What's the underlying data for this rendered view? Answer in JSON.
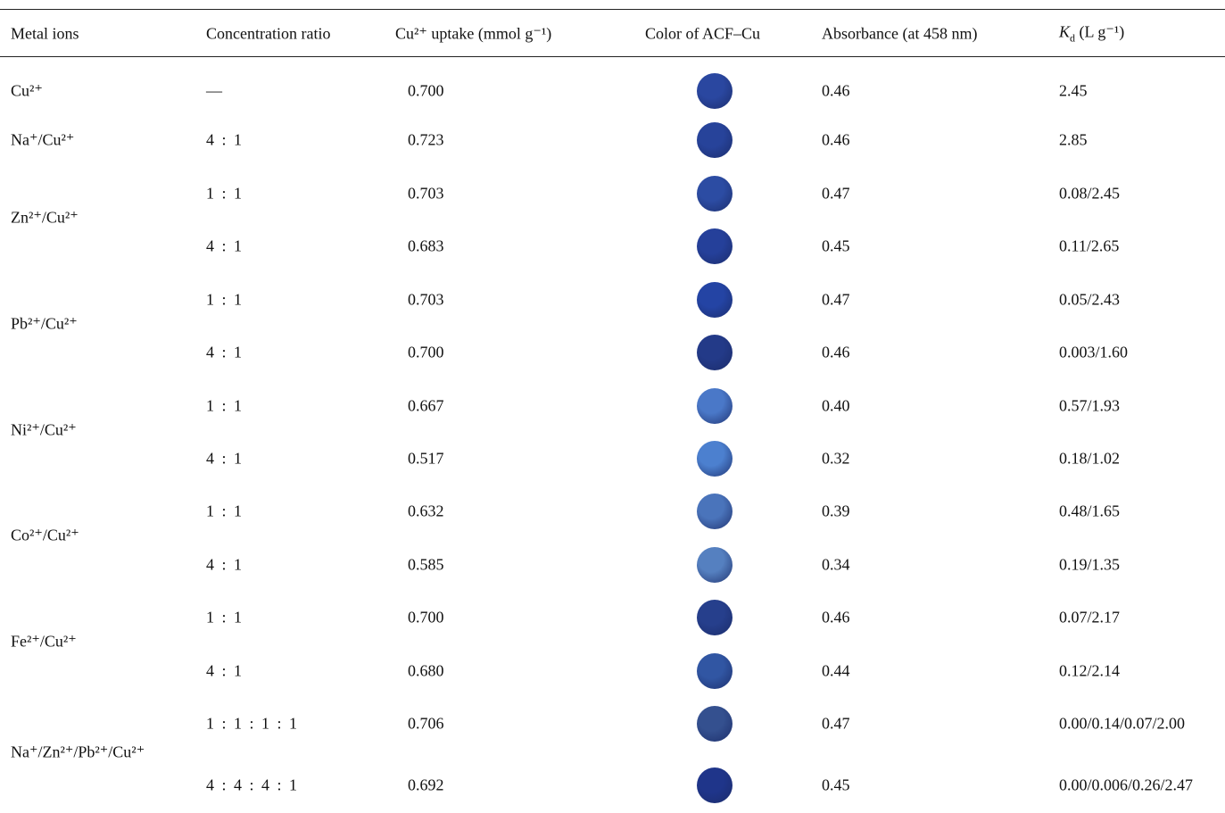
{
  "header": {
    "metal_ions": "Metal ions",
    "ratio": "Concentration ratio",
    "uptake": "Cu²⁺ uptake (mmol g⁻¹)",
    "color": "Color of ACF–Cu",
    "absorbance": "Absorbance (at 458 nm)",
    "kd": {
      "symbol": "K",
      "subscript": "d",
      "unit": "(L g⁻¹)"
    }
  },
  "table": {
    "groups": [
      {
        "ion": "Cu²⁺",
        "rows": [
          {
            "ratio": "—",
            "uptake": "0.700",
            "swatch": "#2a47a0",
            "absorbance": "0.46",
            "kd": "2.45"
          }
        ]
      },
      {
        "ion": "Na⁺/Cu²⁺",
        "rows": [
          {
            "ratio": "4 : 1",
            "uptake": "0.723",
            "swatch": "#27439a",
            "absorbance": "0.46",
            "kd": "2.85"
          }
        ]
      },
      {
        "ion": "Zn²⁺/Cu²⁺",
        "rows": [
          {
            "ratio": "1 : 1",
            "uptake": "0.703",
            "swatch": "#2c4ca3",
            "absorbance": "0.47",
            "kd": "0.08/2.45"
          },
          {
            "ratio": "4 : 1",
            "uptake": "0.683",
            "swatch": "#25409a",
            "absorbance": "0.45",
            "kd": "0.11/2.65"
          }
        ]
      },
      {
        "ion": "Pb²⁺/Cu²⁺",
        "rows": [
          {
            "ratio": "1 : 1",
            "uptake": "0.703",
            "swatch": "#2444a4",
            "absorbance": "0.47",
            "kd": "0.05/2.43"
          },
          {
            "ratio": "4 : 1",
            "uptake": "0.700",
            "swatch": "#233a88",
            "absorbance": "0.46",
            "kd": "0.003/1.60"
          }
        ]
      },
      {
        "ion": "Ni²⁺/Cu²⁺",
        "rows": [
          {
            "ratio": "1 : 1",
            "uptake": "0.667",
            "swatch": "#4a78c8",
            "absorbance": "0.40",
            "kd": "0.57/1.93"
          },
          {
            "ratio": "4 : 1",
            "uptake": "0.517",
            "swatch": "#4c80cf",
            "absorbance": "0.32",
            "kd": "0.18/1.02"
          }
        ]
      },
      {
        "ion": "Co²⁺/Cu²⁺",
        "rows": [
          {
            "ratio": "1 : 1",
            "uptake": "0.632",
            "swatch": "#4a74bb",
            "absorbance": "0.39",
            "kd": "0.48/1.65"
          },
          {
            "ratio": "4 : 1",
            "uptake": "0.585",
            "swatch": "#5580c0",
            "absorbance": "0.34",
            "kd": "0.19/1.35"
          }
        ]
      },
      {
        "ion": "Fe²⁺/Cu²⁺",
        "rows": [
          {
            "ratio": "1 : 1",
            "uptake": "0.700",
            "swatch": "#263f8c",
            "absorbance": "0.46",
            "kd": "0.07/2.17"
          },
          {
            "ratio": "4 : 1",
            "uptake": "0.680",
            "swatch": "#3156a3",
            "absorbance": "0.44",
            "kd": "0.12/2.14"
          }
        ]
      },
      {
        "ion": "Na⁺/Zn²⁺/Pb²⁺/Cu²⁺",
        "rows": [
          {
            "ratio": "1 : 1 : 1 : 1",
            "uptake": "0.706",
            "swatch": "#34508f",
            "absorbance": "0.47",
            "kd": "0.00/0.14/0.07/2.00"
          },
          {
            "ratio": "4 : 4 : 4 : 1",
            "uptake": "0.692",
            "swatch": "#1f358a",
            "absorbance": "0.45",
            "kd": "0.00/0.006/0.26/2.47"
          }
        ]
      }
    ]
  }
}
